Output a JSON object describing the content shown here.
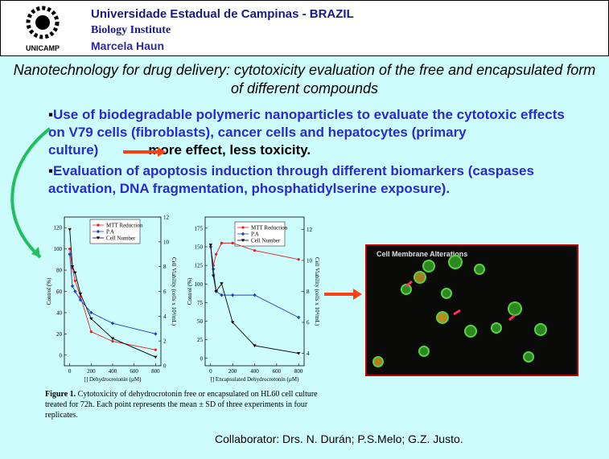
{
  "header": {
    "institution": "Universidade Estadual de Campinas  -  BRAZIL",
    "institute": "Biology Institute",
    "author": "Marcela Haun",
    "logo_label": "UNICAMP"
  },
  "title": "Nanotechnology for drug delivery:  cytotoxicity evaluation of the free and encapsulated form of different compounds",
  "bullets": [
    {
      "text": "Use of biodegradable polymeric nanoparticles to evaluate the cytotoxic effects on V79 cells (fibroblasts), cancer cells and hepatocytes (primary culture)",
      "result": "more effect, less toxicity."
    },
    {
      "text": "Evaluation of apoptosis induction through different biomarkers (caspases activation, DNA fragmentation, phosphatidylserine exposure)."
    }
  ],
  "charts": [
    {
      "type": "line",
      "xlabel": "[] Dehydrocrotonin (µM)",
      "ylabel": "Control (%)",
      "y2label": "Cell Viability (cells x 10⁴/mL)",
      "xlim": [
        -50,
        850
      ],
      "xticks": [
        0,
        200,
        400,
        600,
        800
      ],
      "ylim": [
        -10,
        130
      ],
      "yticks": [
        0,
        20,
        40,
        60,
        80,
        100,
        120
      ],
      "y2lim": [
        0,
        12
      ],
      "y2ticks": [
        0,
        2,
        4,
        6,
        8,
        10,
        12
      ],
      "x": [
        0,
        25,
        50,
        100,
        200,
        400,
        800
      ],
      "series": [
        {
          "name": "MTT Reduction",
          "color": "#e02020",
          "marker": "circle",
          "values": [
            100,
            82,
            70,
            55,
            22,
            13,
            5
          ]
        },
        {
          "name": "P.A",
          "color": "#2040c0",
          "marker": "diamond",
          "values": [
            95,
            65,
            60,
            52,
            40,
            30,
            20
          ]
        },
        {
          "name": "Cell Number",
          "color": "#000000",
          "marker": "triangle",
          "axis": "y2",
          "values": [
            11,
            8,
            7.5,
            5.8,
            3.8,
            2.2,
            0.7
          ]
        }
      ]
    },
    {
      "type": "line",
      "xlabel": "[] Encapsulated Dehydrocrotonin (µM)",
      "ylabel": "Control (%)",
      "y2label": "Cell Viability (cells x 10⁴/mL)",
      "xlim": [
        -50,
        850
      ],
      "xticks": [
        0,
        200,
        400,
        600,
        800
      ],
      "ylim": [
        -10,
        190
      ],
      "yticks": [
        0,
        25,
        50,
        75,
        100,
        125,
        150,
        175
      ],
      "y2lim": [
        3.2,
        12.8
      ],
      "y2ticks": [
        4,
        6,
        8,
        10,
        12
      ],
      "x": [
        0,
        25,
        50,
        100,
        200,
        400,
        800
      ],
      "series": [
        {
          "name": "MTT Reduction",
          "color": "#e02020",
          "marker": "circle",
          "values": [
            150,
            125,
            140,
            155,
            155,
            145,
            133
          ]
        },
        {
          "name": "P.A",
          "color": "#2040c0",
          "marker": "diamond",
          "values": [
            150,
            120,
            90,
            85,
            85,
            85,
            55
          ]
        },
        {
          "name": "Cell Number",
          "color": "#000000",
          "marker": "triangle",
          "axis": "y2",
          "values": [
            11,
            9,
            8,
            8.5,
            6,
            4.5,
            4
          ]
        }
      ]
    }
  ],
  "caption": {
    "label": "Figure 1.",
    "text": "Cytotoxicity of dehydrocrotonin free or encapsulated on HL60 cell culture treated for 72h. Each point represents the mean ± SD of three experiments in four replicates."
  },
  "micrograph": {
    "title": "Cell Membrane Alterations"
  },
  "collaborator": "Collaborator: Drs. N. Durán; P.S.Melo; G.Z. Justo."
}
